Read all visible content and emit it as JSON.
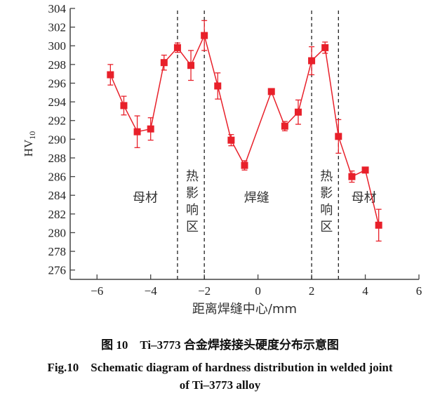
{
  "chart_data": {
    "type": "line",
    "xlabel": "距离焊缝中心/mm",
    "ylabel": "HV",
    "ylabel_sub": "10",
    "xlim": [
      -7,
      6
    ],
    "ylim": [
      275,
      304
    ],
    "xticks": [
      -6,
      -4,
      -2,
      0,
      2,
      4,
      6
    ],
    "yticks": [
      276,
      278,
      280,
      282,
      284,
      286,
      288,
      290,
      292,
      294,
      296,
      298,
      300,
      302,
      304
    ],
    "grid": false,
    "color": "#e8202a",
    "series": [
      {
        "x": [
          -5.5,
          -5,
          -4.5,
          -4,
          -3.5,
          -3,
          -2.5,
          -2,
          -1.5,
          -1,
          -0.5,
          0.5,
          1,
          1.5,
          2,
          2.5,
          3,
          3.5,
          4,
          4.5
        ],
        "y": [
          296.9,
          293.6,
          290.8,
          291.1,
          298.2,
          299.8,
          297.9,
          301.1,
          295.7,
          289.9,
          287.2,
          295.1,
          291.4,
          292.9,
          298.4,
          299.8,
          290.3,
          286.0,
          286.7,
          280.8
        ],
        "error": [
          1.1,
          1.0,
          1.7,
          1.2,
          0.8,
          0.5,
          1.6,
          1.6,
          1.4,
          0.6,
          0.5,
          0.0,
          0.5,
          1.3,
          1.5,
          0.6,
          1.8,
          0.6,
          0.1,
          1.7
        ]
      }
    ],
    "boundaries": [
      -3,
      -2,
      2,
      3
    ],
    "annotations": [
      {
        "text": "母材",
        "x": -4.2,
        "y": 283.3,
        "vertical": false
      },
      {
        "text": "热影响区",
        "x": -2.5,
        "y": 285.5,
        "vertical": true
      },
      {
        "text": "焊缝",
        "x": -0.05,
        "y": 283.3,
        "vertical": false
      },
      {
        "text": "热影响区",
        "x": 2.5,
        "y": 285.5,
        "vertical": true
      },
      {
        "text": "母材",
        "x": 3.95,
        "y": 283.3,
        "vertical": false
      }
    ]
  },
  "caption": {
    "cn": "图 10　Ti–3773 合金焊接接头硬度分布示意图",
    "en_line1": "Fig.10　Schematic diagram of hardness distribution in welded joint",
    "en_line2": "of Ti–3773 alloy"
  }
}
